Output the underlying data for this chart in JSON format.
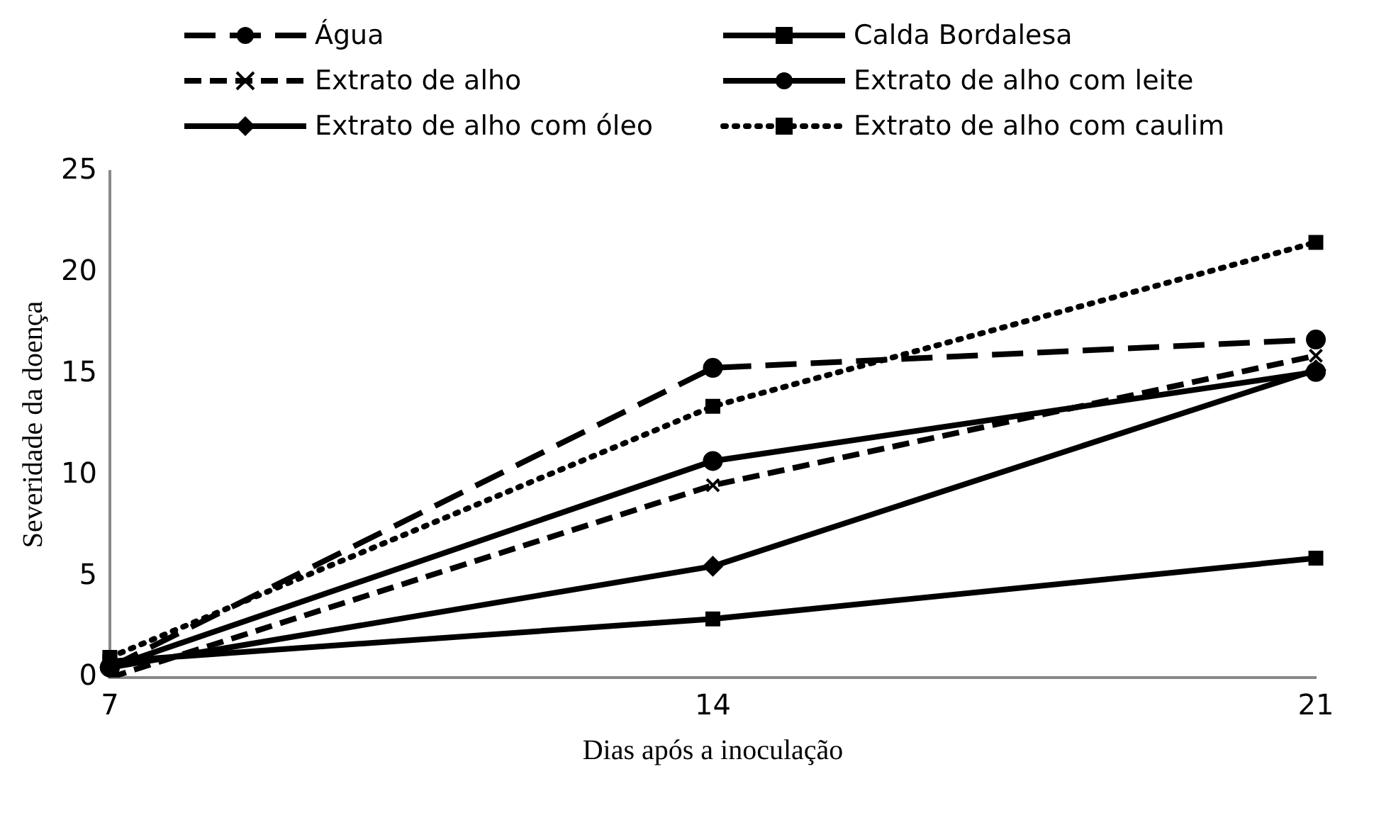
{
  "chart_data": {
    "type": "line",
    "xlabel": "Dias após a inoculação",
    "ylabel": "Severidade da doença",
    "categories": [
      "7",
      "14",
      "21"
    ],
    "ylim": [
      0,
      25
    ],
    "yticks": [
      0,
      5,
      10,
      15,
      20,
      25
    ],
    "grid": false,
    "legend": "top",
    "series": [
      {
        "name": "Água",
        "color": "#000000",
        "values": [
          0.5,
          15.3,
          16.7
        ],
        "marker": "circle",
        "line_style": "dashed"
      },
      {
        "name": "Calda Bordalesa",
        "color": "#000000",
        "values": [
          0.8,
          2.9,
          5.9
        ],
        "marker": "square",
        "line_style": "solid"
      },
      {
        "name": "Extrato de alho",
        "color": "#000000",
        "values": [
          0,
          9.5,
          15.9
        ],
        "marker": "cross",
        "line_style": "dashed"
      },
      {
        "name": "Extrato de alho com leite",
        "color": "#000000",
        "values": [
          0.5,
          10.7,
          15.1
        ],
        "marker": "circle",
        "line_style": "solid"
      },
      {
        "name": "Extrato de alho com óleo",
        "color": "#000000",
        "values": [
          0.5,
          5.5,
          15.2
        ],
        "marker": "diamond",
        "line_style": "solid"
      },
      {
        "name": "Extrato de alho com caulim",
        "color": "#000000",
        "values": [
          1.0,
          13.4,
          21.5
        ],
        "marker": "square",
        "line_style": "dotted"
      }
    ]
  }
}
